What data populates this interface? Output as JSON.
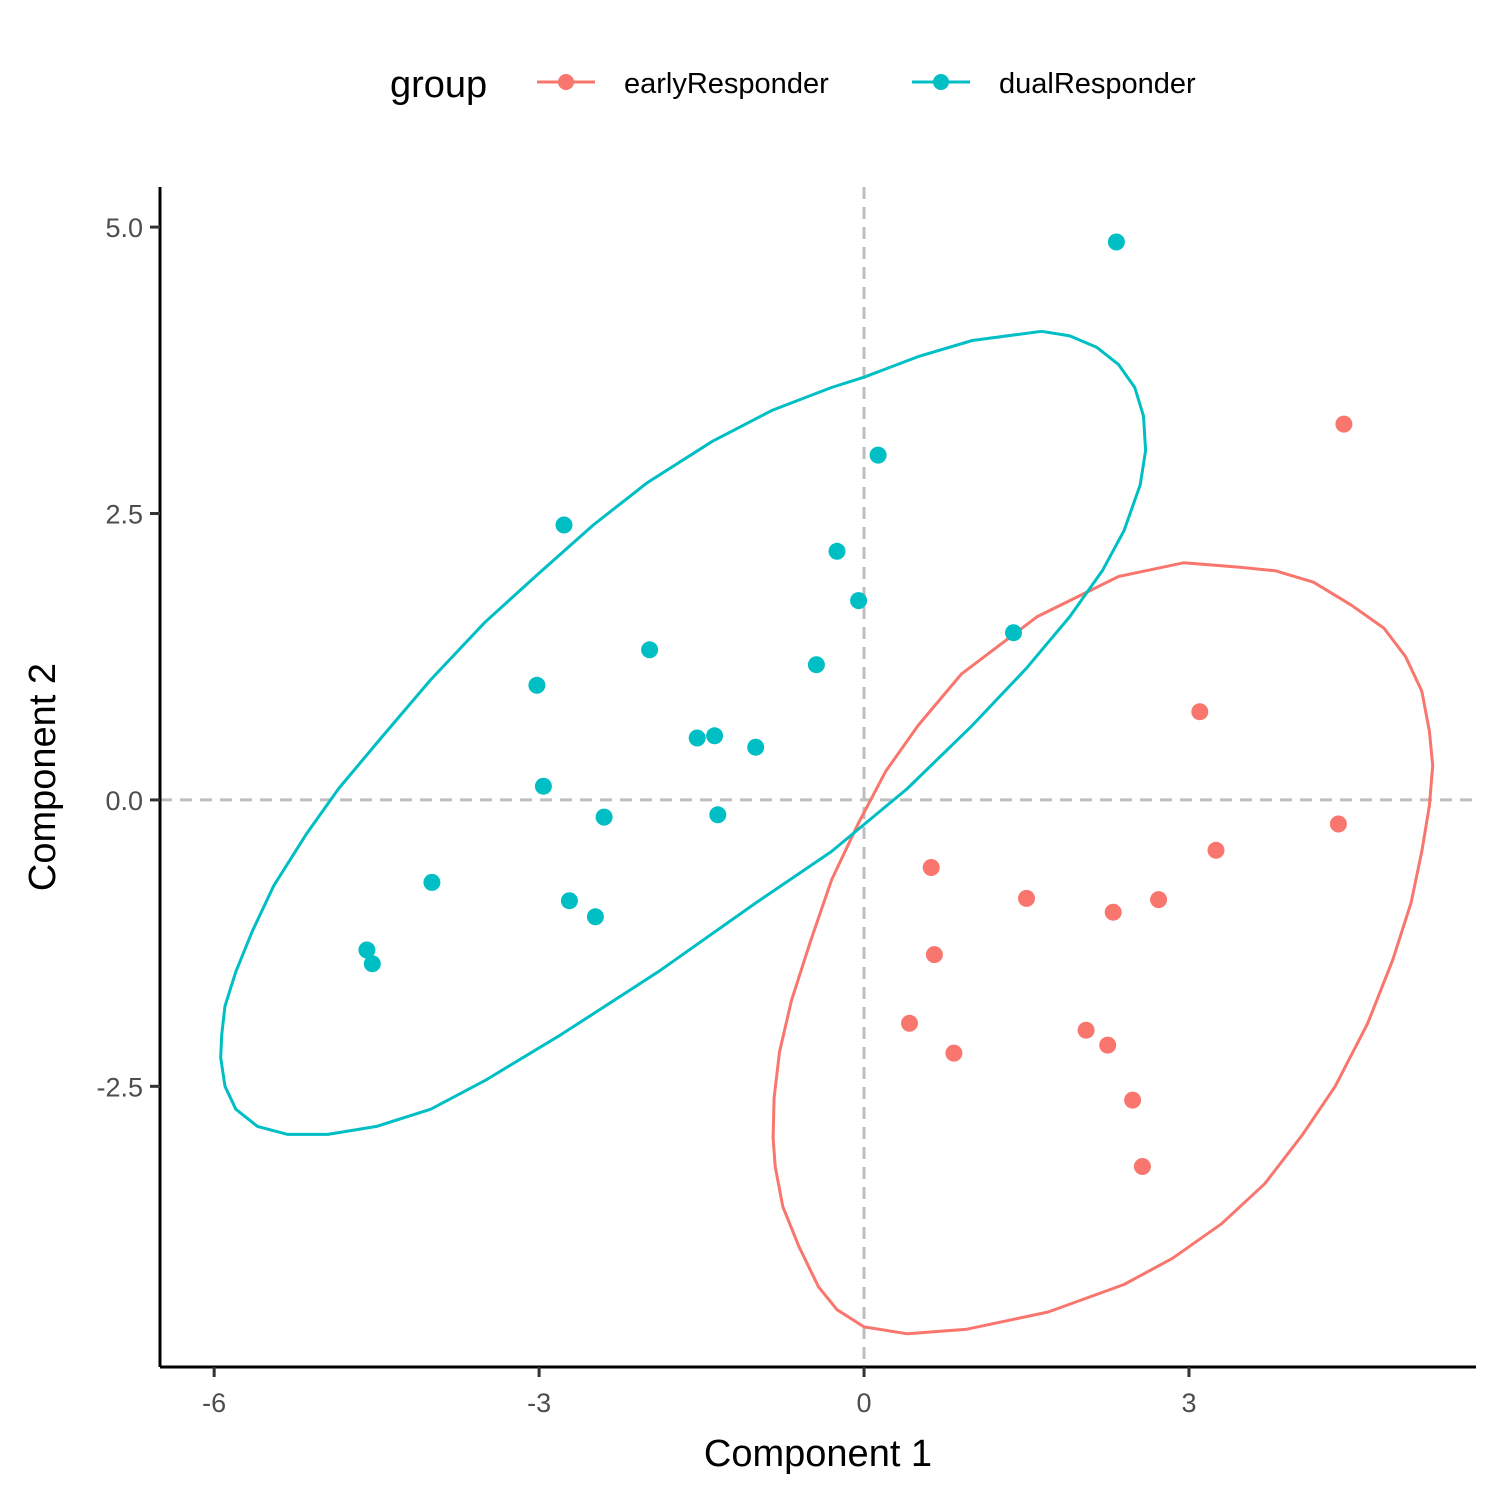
{
  "chart_data": {
    "type": "scatter",
    "xlabel": "Component 1",
    "ylabel": "Component 2",
    "xlim": [
      -6.5,
      5.65
    ],
    "ylim": [
      -4.95,
      5.35
    ],
    "xticks": [
      -6,
      -3,
      0,
      3
    ],
    "xtick_labels": [
      "-6",
      "-3",
      "0",
      "3"
    ],
    "yticks": [
      -2.5,
      0,
      2.5,
      5
    ],
    "ytick_labels": [
      "-2.5",
      "0.0",
      "2.5",
      "5.0"
    ],
    "reference_lines": {
      "x": 0,
      "y": 0,
      "style": "dashed",
      "color": "#bebebe"
    },
    "grid": false,
    "legend": {
      "title": "group",
      "position": "top",
      "entries": [
        "earlyResponder",
        "dualResponder"
      ]
    },
    "series": [
      {
        "name": "earlyResponder",
        "color": "#F8766D",
        "points": [
          [
            4.43,
            3.28
          ],
          [
            3.1,
            0.77
          ],
          [
            4.38,
            -0.21
          ],
          [
            3.25,
            -0.44
          ],
          [
            0.62,
            -0.59
          ],
          [
            1.5,
            -0.86
          ],
          [
            2.3,
            -0.98
          ],
          [
            2.72,
            -0.87
          ],
          [
            0.65,
            -1.35
          ],
          [
            0.42,
            -1.95
          ],
          [
            0.83,
            -2.21
          ],
          [
            2.05,
            -2.01
          ],
          [
            2.25,
            -2.14
          ],
          [
            2.48,
            -2.62
          ],
          [
            2.57,
            -3.2
          ]
        ],
        "ellipse": [
          [
            3.47,
            2.03
          ],
          [
            3.8,
            2.0
          ],
          [
            4.15,
            1.9
          ],
          [
            4.5,
            1.7
          ],
          [
            4.8,
            1.5
          ],
          [
            5.0,
            1.25
          ],
          [
            5.15,
            0.95
          ],
          [
            5.22,
            0.6
          ],
          [
            5.25,
            0.3
          ],
          [
            5.22,
            -0.05
          ],
          [
            5.15,
            -0.45
          ],
          [
            5.05,
            -0.9
          ],
          [
            4.88,
            -1.4
          ],
          [
            4.65,
            -1.95
          ],
          [
            4.35,
            -2.5
          ],
          [
            4.05,
            -2.92
          ],
          [
            3.7,
            -3.35
          ],
          [
            3.3,
            -3.7
          ],
          [
            2.85,
            -4.0
          ],
          [
            2.4,
            -4.23
          ],
          [
            1.7,
            -4.47
          ],
          [
            0.95,
            -4.62
          ],
          [
            0.4,
            -4.66
          ],
          [
            0.0,
            -4.6
          ],
          [
            -0.25,
            -4.45
          ],
          [
            -0.42,
            -4.25
          ],
          [
            -0.6,
            -3.9
          ],
          [
            -0.75,
            -3.55
          ],
          [
            -0.82,
            -3.2
          ],
          [
            -0.84,
            -2.95
          ],
          [
            -0.83,
            -2.6
          ],
          [
            -0.78,
            -2.2
          ],
          [
            -0.67,
            -1.75
          ],
          [
            -0.5,
            -1.25
          ],
          [
            -0.3,
            -0.7
          ],
          [
            -0.05,
            -0.2
          ],
          [
            0.2,
            0.25
          ],
          [
            0.5,
            0.65
          ],
          [
            0.9,
            1.1
          ],
          [
            1.6,
            1.6
          ],
          [
            2.35,
            1.95
          ],
          [
            2.95,
            2.07
          ],
          [
            3.47,
            2.03
          ]
        ]
      },
      {
        "name": "dualResponder",
        "color": "#00BFC4",
        "points": [
          [
            2.33,
            4.87
          ],
          [
            0.13,
            3.01
          ],
          [
            -2.77,
            2.4
          ],
          [
            -0.25,
            2.17
          ],
          [
            -0.05,
            1.74
          ],
          [
            1.38,
            1.46
          ],
          [
            -1.98,
            1.31
          ],
          [
            -0.44,
            1.18
          ],
          [
            -3.02,
            1.0
          ],
          [
            -1.38,
            0.56
          ],
          [
            -1.54,
            0.54
          ],
          [
            -1.0,
            0.46
          ],
          [
            -2.96,
            0.12
          ],
          [
            -2.4,
            -0.15
          ],
          [
            -1.35,
            -0.13
          ],
          [
            -3.99,
            -0.72
          ],
          [
            -2.72,
            -0.88
          ],
          [
            -2.48,
            -1.02
          ],
          [
            -4.59,
            -1.31
          ],
          [
            -4.54,
            -1.43
          ]
        ],
        "ellipse": [
          [
            1.64,
            4.09
          ],
          [
            1.9,
            4.05
          ],
          [
            2.15,
            3.95
          ],
          [
            2.35,
            3.8
          ],
          [
            2.5,
            3.6
          ],
          [
            2.58,
            3.35
          ],
          [
            2.6,
            3.05
          ],
          [
            2.55,
            2.75
          ],
          [
            2.4,
            2.35
          ],
          [
            2.2,
            2.0
          ],
          [
            1.9,
            1.6
          ],
          [
            1.5,
            1.15
          ],
          [
            1.0,
            0.65
          ],
          [
            0.4,
            0.1
          ],
          [
            -0.3,
            -0.45
          ],
          [
            -1.0,
            -0.9
          ],
          [
            -1.9,
            -1.5
          ],
          [
            -2.8,
            -2.05
          ],
          [
            -3.5,
            -2.45
          ],
          [
            -4.0,
            -2.7
          ],
          [
            -4.5,
            -2.85
          ],
          [
            -4.95,
            -2.92
          ],
          [
            -5.32,
            -2.92
          ],
          [
            -5.6,
            -2.85
          ],
          [
            -5.8,
            -2.7
          ],
          [
            -5.9,
            -2.5
          ],
          [
            -5.94,
            -2.25
          ],
          [
            -5.93,
            -2.05
          ],
          [
            -5.9,
            -1.8
          ],
          [
            -5.8,
            -1.5
          ],
          [
            -5.65,
            -1.15
          ],
          [
            -5.45,
            -0.75
          ],
          [
            -5.15,
            -0.3
          ],
          [
            -4.85,
            0.1
          ],
          [
            -4.45,
            0.55
          ],
          [
            -4.0,
            1.05
          ],
          [
            -3.5,
            1.55
          ],
          [
            -3.0,
            1.98
          ],
          [
            -2.5,
            2.4
          ],
          [
            -2.0,
            2.77
          ],
          [
            -1.4,
            3.13
          ],
          [
            -0.85,
            3.4
          ],
          [
            -0.3,
            3.6
          ],
          [
            0.0,
            3.69
          ],
          [
            0.5,
            3.87
          ],
          [
            1.0,
            4.01
          ],
          [
            1.64,
            4.09
          ]
        ]
      }
    ]
  }
}
